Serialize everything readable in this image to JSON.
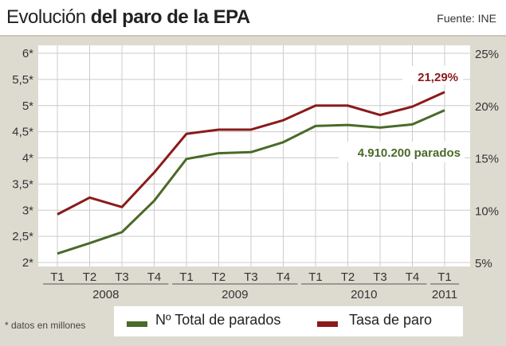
{
  "header": {
    "title_light": "Evolución ",
    "title_bold": "del paro de la EPA",
    "source": "Fuente: INE"
  },
  "chart_data": {
    "type": "line",
    "categories": [
      "T1",
      "T2",
      "T3",
      "T4",
      "T1",
      "T2",
      "T3",
      "T4",
      "T1",
      "T2",
      "T3",
      "T4",
      "T1"
    ],
    "years": [
      {
        "label": "2008",
        "span": 4
      },
      {
        "label": "2009",
        "span": 4
      },
      {
        "label": "2010",
        "span": 4
      },
      {
        "label": "2011",
        "span": 1
      }
    ],
    "y_left": {
      "ticks": [
        "2*",
        "2,5*",
        "3*",
        "3,5*",
        "4*",
        "4,5*",
        "5*",
        "5,5*",
        "6*"
      ],
      "range": [
        2,
        6
      ]
    },
    "y_right": {
      "ticks": [
        "5%",
        "10%",
        "15%",
        "20%",
        "25%"
      ],
      "range": [
        5,
        25
      ]
    },
    "grid": true,
    "series": [
      {
        "name": "Nº Total de parados",
        "axis": "left",
        "color": "#4a6a2a",
        "values": [
          2.17,
          2.37,
          2.58,
          3.18,
          3.98,
          4.09,
          4.11,
          4.3,
          4.61,
          4.63,
          4.58,
          4.64,
          4.91
        ]
      },
      {
        "name": "Tasa de paro",
        "axis": "right",
        "color": "#8b1a1a",
        "values": [
          9.6,
          11.2,
          10.3,
          13.6,
          17.3,
          17.7,
          17.7,
          18.6,
          20.0,
          20.0,
          19.1,
          19.9,
          21.29
        ]
      }
    ],
    "annotations": {
      "rate_last": "21,29%",
      "total_last": "4.910.200 parados"
    },
    "legend_placement": "bottom",
    "note": "* datos en millones"
  }
}
